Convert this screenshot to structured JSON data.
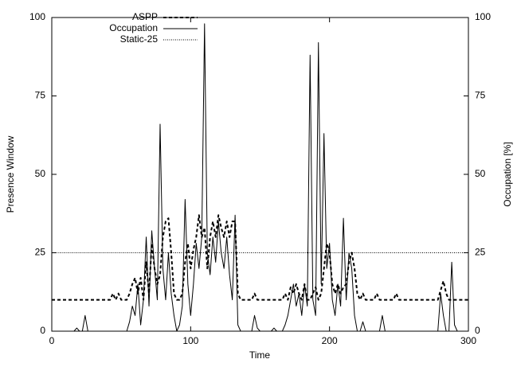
{
  "chart_data": {
    "type": "line",
    "xlabel": "Time",
    "ylabel": "Presence Window",
    "y2label": "Occupation [%]",
    "xlim": [
      0,
      300
    ],
    "xticks": [
      0,
      100,
      200,
      300
    ],
    "ylim": [
      0,
      100
    ],
    "yticks": [
      0,
      25,
      50,
      75,
      100
    ],
    "y2lim": [
      0,
      100
    ],
    "y2ticks": [
      0,
      25,
      50,
      75,
      100
    ],
    "legend": "upper left",
    "x": [
      0,
      2,
      4,
      6,
      8,
      10,
      12,
      14,
      16,
      18,
      20,
      22,
      24,
      26,
      28,
      30,
      32,
      34,
      36,
      38,
      40,
      42,
      44,
      46,
      48,
      50,
      52,
      54,
      56,
      58,
      60,
      62,
      64,
      66,
      68,
      70,
      72,
      74,
      76,
      78,
      80,
      82,
      84,
      86,
      88,
      90,
      92,
      94,
      96,
      98,
      100,
      102,
      104,
      106,
      108,
      110,
      112,
      114,
      116,
      118,
      120,
      122,
      124,
      126,
      128,
      130,
      132,
      134,
      136,
      138,
      140,
      142,
      144,
      146,
      148,
      150,
      152,
      154,
      156,
      158,
      160,
      162,
      164,
      166,
      168,
      170,
      172,
      174,
      176,
      178,
      180,
      182,
      184,
      186,
      188,
      190,
      192,
      194,
      196,
      198,
      200,
      202,
      204,
      206,
      208,
      210,
      212,
      214,
      216,
      218,
      220,
      222,
      224,
      226,
      228,
      230,
      232,
      234,
      236,
      238,
      240,
      242,
      244,
      246,
      248,
      250,
      252,
      254,
      256,
      258,
      260,
      262,
      264,
      266,
      268,
      270,
      272,
      274,
      276,
      278,
      280,
      282,
      284,
      286,
      288,
      290,
      292,
      294,
      296,
      298,
      300
    ],
    "series": [
      {
        "name": "ASPP",
        "color": "#000000",
        "style": "dashed",
        "values": [
          10,
          10,
          10,
          10,
          10,
          10,
          10,
          10,
          10,
          10,
          10,
          10,
          10,
          10,
          10,
          10,
          10,
          10,
          10,
          10,
          10,
          10,
          12,
          10,
          12,
          10,
          10,
          10,
          12,
          15,
          17,
          12,
          17,
          10,
          22,
          12,
          28,
          20,
          15,
          18,
          30,
          35,
          36,
          25,
          12,
          10,
          10,
          12,
          22,
          28,
          20,
          26,
          30,
          37,
          30,
          33,
          20,
          30,
          35,
          30,
          37,
          33,
          30,
          35,
          30,
          35,
          35,
          12,
          10,
          10,
          10,
          10,
          10,
          12,
          10,
          10,
          10,
          10,
          10,
          10,
          10,
          10,
          10,
          10,
          12,
          10,
          14,
          12,
          15,
          12,
          10,
          15,
          10,
          10,
          12,
          14,
          10,
          12,
          20,
          28,
          25,
          15,
          12,
          15,
          12,
          14,
          15,
          22,
          25,
          20,
          12,
          10,
          12,
          10,
          10,
          10,
          10,
          12,
          10,
          10,
          10,
          10,
          10,
          10,
          12,
          10,
          10,
          10,
          10,
          10,
          10,
          10,
          10,
          10,
          10,
          10,
          10,
          10,
          10,
          10,
          13,
          16,
          12,
          10,
          10,
          10,
          10,
          10,
          10,
          10,
          10
        ]
      },
      {
        "name": "Occupation",
        "color": "#000000",
        "style": "solid",
        "axis": "y2",
        "values": [
          0,
          0,
          0,
          0,
          0,
          0,
          0,
          0,
          0,
          1,
          0,
          0,
          5,
          0,
          0,
          0,
          0,
          0,
          0,
          0,
          0,
          0,
          0,
          0,
          0,
          0,
          0,
          0,
          3,
          8,
          5,
          15,
          2,
          10,
          30,
          8,
          32,
          20,
          10,
          66,
          20,
          10,
          25,
          12,
          5,
          0,
          2,
          8,
          42,
          15,
          5,
          15,
          28,
          20,
          30,
          98,
          25,
          18,
          30,
          22,
          35,
          25,
          20,
          30,
          18,
          10,
          37,
          2,
          0,
          0,
          0,
          0,
          0,
          5,
          1,
          0,
          0,
          0,
          0,
          0,
          1,
          0,
          0,
          0,
          2,
          5,
          10,
          15,
          8,
          12,
          5,
          15,
          8,
          88,
          10,
          5,
          92,
          15,
          63,
          20,
          28,
          10,
          5,
          15,
          8,
          36,
          10,
          25,
          20,
          5,
          0,
          0,
          3,
          0,
          0,
          0,
          0,
          0,
          0,
          5,
          0,
          0,
          0,
          0,
          0,
          0,
          0,
          0,
          0,
          0,
          0,
          0,
          0,
          0,
          0,
          0,
          0,
          0,
          0,
          0,
          12,
          5,
          0,
          0,
          22,
          2,
          0,
          0,
          0,
          0,
          0
        ]
      },
      {
        "name": "Static-25",
        "color": "#000000",
        "style": "dotted",
        "x": [
          0,
          300
        ],
        "values": [
          25,
          25
        ]
      }
    ]
  }
}
